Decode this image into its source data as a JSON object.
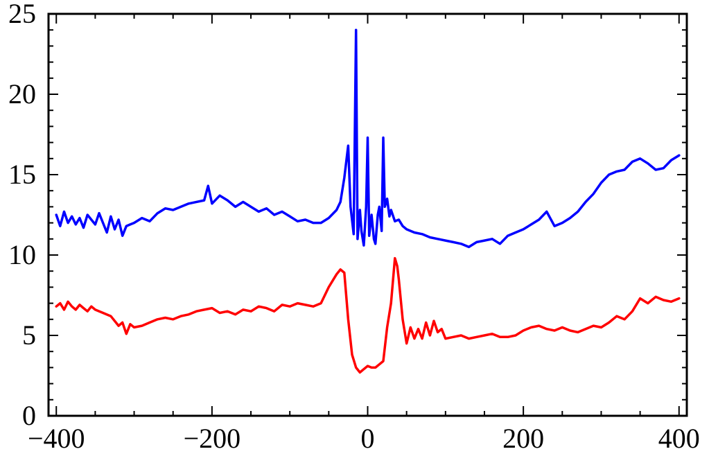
{
  "chart_data": {
    "type": "line",
    "title": "",
    "xlabel": "",
    "ylabel": "",
    "xlim": [
      -410,
      410
    ],
    "ylim": [
      0,
      25
    ],
    "x_ticks": [
      -400,
      -200,
      0,
      200,
      400
    ],
    "x_tick_labels": [
      "−400",
      "−200",
      "0",
      "200",
      "400"
    ],
    "y_ticks": [
      0,
      5,
      10,
      15,
      20,
      25
    ],
    "y_tick_labels": [
      "0",
      "5",
      "10",
      "15",
      "20",
      "25"
    ],
    "x_minor_step": 50,
    "y_minor_step": 1,
    "grid": false,
    "legend": "none",
    "series": [
      {
        "color": "#0000ff",
        "x": [
          -400,
          -395,
          -390,
          -385,
          -380,
          -375,
          -370,
          -365,
          -360,
          -355,
          -350,
          -345,
          -340,
          -335,
          -330,
          -325,
          -320,
          -315,
          -310,
          -305,
          -300,
          -290,
          -280,
          -270,
          -260,
          -250,
          -240,
          -230,
          -220,
          -210,
          -205,
          -200,
          -190,
          -180,
          -170,
          -160,
          -150,
          -140,
          -130,
          -120,
          -110,
          -100,
          -90,
          -80,
          -70,
          -60,
          -50,
          -40,
          -35,
          -30,
          -25,
          -22,
          -18,
          -15,
          -13,
          -10,
          -8,
          -5,
          -2,
          0,
          2,
          5,
          8,
          10,
          13,
          15,
          18,
          20,
          22,
          25,
          28,
          30,
          35,
          40,
          45,
          50,
          60,
          70,
          80,
          90,
          100,
          110,
          120,
          130,
          140,
          150,
          160,
          170,
          180,
          190,
          200,
          210,
          220,
          230,
          240,
          250,
          260,
          270,
          280,
          290,
          300,
          310,
          320,
          330,
          340,
          350,
          360,
          370,
          380,
          390,
          400
        ],
        "values": [
          12.5,
          11.8,
          12.7,
          12.0,
          12.4,
          11.9,
          12.3,
          11.7,
          12.5,
          12.2,
          11.9,
          12.6,
          12.0,
          11.4,
          12.4,
          11.6,
          12.2,
          11.2,
          11.8,
          11.9,
          12.0,
          12.3,
          12.1,
          12.6,
          12.9,
          12.8,
          13.0,
          13.2,
          13.3,
          13.4,
          14.3,
          13.2,
          13.7,
          13.4,
          13.0,
          13.3,
          13.0,
          12.7,
          12.9,
          12.5,
          12.7,
          12.4,
          12.1,
          12.2,
          12.0,
          12.0,
          12.3,
          12.8,
          13.3,
          14.8,
          16.8,
          13.0,
          11.3,
          24.0,
          11.0,
          12.8,
          11.5,
          10.6,
          13.0,
          17.3,
          11.2,
          12.5,
          11.0,
          10.7,
          12.5,
          13.0,
          11.5,
          17.3,
          13.0,
          13.5,
          12.4,
          12.8,
          12.1,
          12.2,
          11.8,
          11.6,
          11.4,
          11.3,
          11.1,
          11.0,
          10.9,
          10.8,
          10.7,
          10.5,
          10.8,
          10.9,
          11.0,
          10.7,
          11.2,
          11.4,
          11.6,
          11.9,
          12.2,
          12.7,
          11.8,
          12.0,
          12.3,
          12.7,
          13.3,
          13.8,
          14.5,
          15.0,
          15.2,
          15.3,
          15.8,
          16.0,
          15.7,
          15.3,
          15.4,
          15.9,
          16.2
        ]
      },
      {
        "color": "#ff0000",
        "x": [
          -400,
          -395,
          -390,
          -385,
          -380,
          -375,
          -370,
          -365,
          -360,
          -355,
          -350,
          -340,
          -330,
          -320,
          -315,
          -310,
          -305,
          -300,
          -290,
          -280,
          -270,
          -260,
          -250,
          -240,
          -230,
          -220,
          -210,
          -200,
          -190,
          -180,
          -170,
          -160,
          -150,
          -140,
          -130,
          -120,
          -110,
          -100,
          -90,
          -80,
          -70,
          -60,
          -50,
          -40,
          -35,
          -30,
          -25,
          -20,
          -15,
          -10,
          -5,
          0,
          5,
          10,
          15,
          20,
          25,
          30,
          35,
          38,
          40,
          45,
          50,
          55,
          60,
          65,
          70,
          75,
          80,
          85,
          90,
          95,
          100,
          110,
          120,
          130,
          140,
          150,
          160,
          170,
          180,
          190,
          200,
          210,
          220,
          230,
          240,
          250,
          260,
          270,
          280,
          290,
          300,
          310,
          320,
          330,
          340,
          350,
          360,
          370,
          380,
          390,
          400
        ],
        "values": [
          6.8,
          7.0,
          6.6,
          7.1,
          6.8,
          6.6,
          6.9,
          6.7,
          6.5,
          6.8,
          6.6,
          6.4,
          6.2,
          5.6,
          5.8,
          5.1,
          5.7,
          5.5,
          5.6,
          5.8,
          6.0,
          6.1,
          6.0,
          6.2,
          6.3,
          6.5,
          6.6,
          6.7,
          6.4,
          6.5,
          6.3,
          6.6,
          6.5,
          6.8,
          6.7,
          6.5,
          6.9,
          6.8,
          7.0,
          6.9,
          6.8,
          7.0,
          8.0,
          8.8,
          9.1,
          8.9,
          6.0,
          3.8,
          3.0,
          2.7,
          2.9,
          3.1,
          3.0,
          3.0,
          3.2,
          3.4,
          5.5,
          7.0,
          9.8,
          9.3,
          8.5,
          6.0,
          4.5,
          5.5,
          4.8,
          5.4,
          4.8,
          5.8,
          5.0,
          5.9,
          5.2,
          5.4,
          4.8,
          4.9,
          5.0,
          4.8,
          4.9,
          5.0,
          5.1,
          4.9,
          4.9,
          5.0,
          5.3,
          5.5,
          5.6,
          5.4,
          5.3,
          5.5,
          5.3,
          5.2,
          5.4,
          5.6,
          5.5,
          5.8,
          6.2,
          6.0,
          6.5,
          7.3,
          7.0,
          7.4,
          7.2,
          7.1,
          7.3
        ]
      }
    ]
  }
}
